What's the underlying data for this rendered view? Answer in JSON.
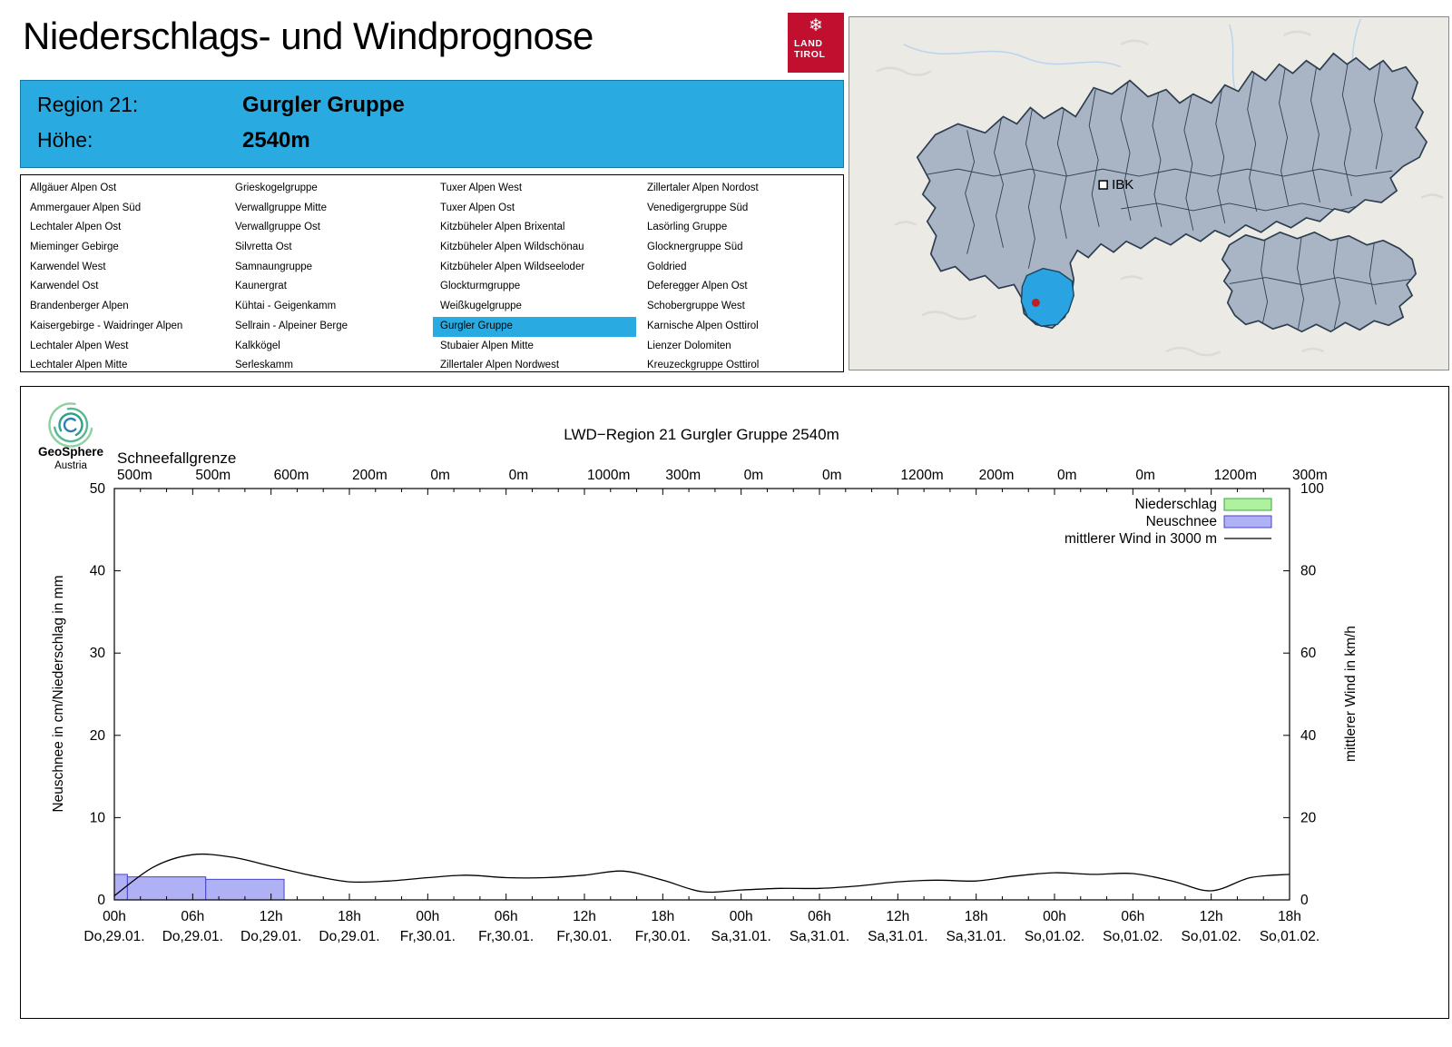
{
  "page": {
    "title": "Niederschlags- und Windprognose"
  },
  "tirol_logo": {
    "snowflake_icon": "❄",
    "line1": "LAND",
    "line2": "TIROL"
  },
  "map": {
    "city_label": "IBK"
  },
  "region_header": {
    "region_label": "Region 21:",
    "region_name": "Gurgler Gruppe",
    "elevation_label": "Höhe:",
    "elevation_value": "2540m"
  },
  "selected_region": "Gurgler Gruppe",
  "region_columns": [
    [
      "Allgäuer Alpen Ost",
      "Ammergauer Alpen Süd",
      "Lechtaler Alpen Ost",
      "Mieminger Gebirge",
      "Karwendel West",
      "Karwendel Ost",
      "Brandenberger Alpen",
      "Kaisergebirge - Waidringer Alpen",
      "Lechtaler Alpen West",
      "Lechtaler Alpen Mitte"
    ],
    [
      "Grieskogelgruppe",
      "Verwallgruppe Mitte",
      "Verwallgruppe Ost",
      "Silvretta Ost",
      "Samnaungruppe",
      "Kaunergrat",
      "Kühtai - Geigenkamm",
      "Sellrain - Alpeiner Berge",
      "Kalkkögel",
      "Serleskamm"
    ],
    [
      "Tuxer Alpen West",
      "Tuxer Alpen Ost",
      "Kitzbüheler Alpen Brixental",
      "Kitzbüheler Alpen Wildschönau",
      "Kitzbüheler Alpen Wildseeloder",
      "Glockturmgruppe",
      "Weißkugelgruppe",
      "Gurgler Gruppe",
      "Stubaier Alpen Mitte",
      "Zillertaler Alpen Nordwest"
    ],
    [
      "Zillertaler Alpen Nordost",
      "Venedigergruppe Süd",
      "Lasörling Gruppe",
      "Glocknergruppe Süd",
      "Goldried",
      "Deferegger Alpen Ost",
      "Schobergruppe West",
      "Karnische Alpen Osttirol",
      "Lienzer Dolomiten",
      "Kreuzeckgruppe Osttirol"
    ]
  ],
  "geosphere": {
    "name": "GeoSphere",
    "country": "Austria"
  },
  "chart_data": {
    "type": "bar",
    "title": "LWD−Region 21 Gurgler Gruppe 2540m",
    "snowline_label": "Schneefallgrenze",
    "snowline_values": [
      "500m",
      "500m",
      "600m",
      "200m",
      "0m",
      "0m",
      "1000m",
      "300m",
      "0m",
      "0m",
      "1200m",
      "200m",
      "0m",
      "0m",
      "1200m",
      "300m"
    ],
    "x_span_hours": 90,
    "x_ticks": [
      {
        "hour": "00h",
        "date": "Do,29.01."
      },
      {
        "hour": "06h",
        "date": "Do,29.01."
      },
      {
        "hour": "12h",
        "date": "Do,29.01."
      },
      {
        "hour": "18h",
        "date": "Do,29.01."
      },
      {
        "hour": "00h",
        "date": "Fr,30.01."
      },
      {
        "hour": "06h",
        "date": "Fr,30.01."
      },
      {
        "hour": "12h",
        "date": "Fr,30.01."
      },
      {
        "hour": "18h",
        "date": "Fr,30.01."
      },
      {
        "hour": "00h",
        "date": "Sa,31.01."
      },
      {
        "hour": "06h",
        "date": "Sa,31.01."
      },
      {
        "hour": "12h",
        "date": "Sa,31.01."
      },
      {
        "hour": "18h",
        "date": "Sa,31.01."
      },
      {
        "hour": "00h",
        "date": "So,01.02."
      },
      {
        "hour": "06h",
        "date": "So,01.02."
      },
      {
        "hour": "12h",
        "date": "So,01.02."
      },
      {
        "hour": "18h",
        "date": "So,01.02."
      }
    ],
    "ylabel_left": "Neuschnee in cm/Niederschlag in mm",
    "ylabel_right": "mittlerer Wind in km/h",
    "ylim_left": [
      0,
      50
    ],
    "ylim_right": [
      0,
      100
    ],
    "yticks_left": [
      0,
      10,
      20,
      30,
      40,
      50
    ],
    "yticks_right": [
      0,
      20,
      40,
      60,
      80,
      100
    ],
    "legend": [
      {
        "label": "Niederschlag",
        "type": "box",
        "fill": "#aef2a0",
        "border": "#37a837"
      },
      {
        "label": "Neuschnee",
        "type": "box",
        "fill": "#b0b0f5",
        "border": "#4646c8"
      },
      {
        "label": "mittlerer Wind in 3000 m",
        "type": "line",
        "color": "#000000"
      }
    ],
    "niederschlag_bars_mm": [],
    "neuschnee_bars_cm": [
      {
        "from_h": 0,
        "to_h": 1,
        "value": 3.1
      },
      {
        "from_h": 1,
        "to_h": 7,
        "value": 2.8
      },
      {
        "from_h": 7,
        "to_h": 13,
        "value": 2.5
      }
    ],
    "wind_kmh": {
      "step_h": 3,
      "values": [
        1,
        8,
        11,
        10.4,
        8.2,
        6,
        4.4,
        4.6,
        5.4,
        6,
        5.4,
        5.4,
        6,
        7,
        4.8,
        2,
        2.4,
        2.8,
        2.8,
        3.4,
        4.4,
        4.8,
        4.6,
        5.8,
        6.6,
        6.2,
        6.4,
        4.6,
        2.2,
        5.4,
        6.2
      ]
    }
  }
}
